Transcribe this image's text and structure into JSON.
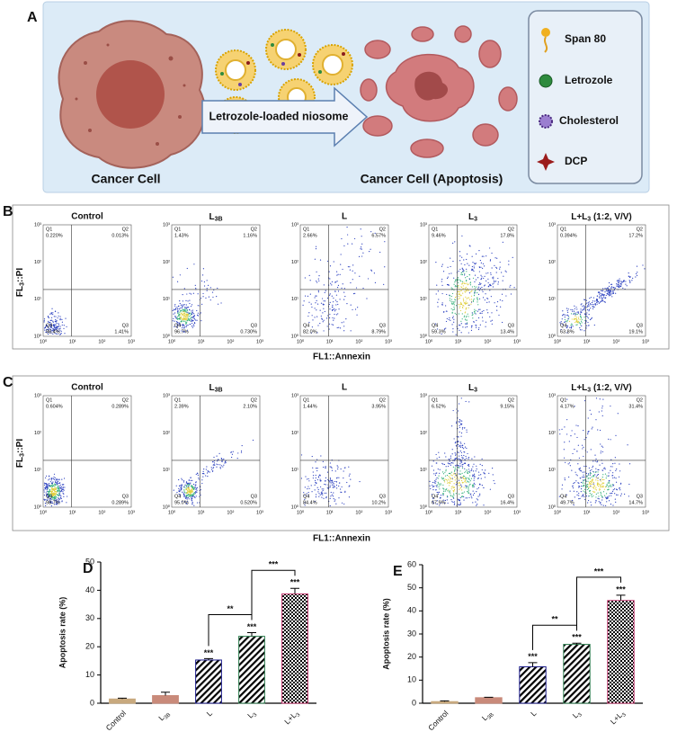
{
  "panel_a": {
    "letter": "A",
    "cancer_cell": "Cancer Cell",
    "carrier": "Letrozole-loaded niosome",
    "apoptotic_cell": "Cancer Cell (Apoptosis)",
    "legend": [
      "Span 80",
      "Letrozole",
      "Cholesterol",
      "DCP"
    ]
  },
  "panel_b": {
    "letter": "B",
    "y_label": "FL3::PI",
    "x_label": "FL1::Annexin",
    "axis_ticks": [
      "10⁰",
      "10¹",
      "10²",
      "10³"
    ],
    "plots": [
      {
        "title": "Control",
        "quadrants": [
          [
            "Q1",
            "0.220%"
          ],
          [
            "Q2",
            "0.013%"
          ],
          [
            "Q3",
            "1.41%"
          ],
          [
            "Q4",
            "98.4%"
          ]
        ]
      },
      {
        "title": "L3B",
        "quadrants": [
          [
            "Q1",
            "1.43%"
          ],
          [
            "Q2",
            "1.16%"
          ],
          [
            "Q3",
            "0.730%"
          ],
          [
            "Q4",
            "96.7%"
          ]
        ]
      },
      {
        "title": "L",
        "quadrants": [
          [
            "Q1",
            "2.66%"
          ],
          [
            "Q2",
            "6.57%"
          ],
          [
            "Q3",
            "8.79%"
          ],
          [
            "Q4",
            "82.0%"
          ]
        ]
      },
      {
        "title": "L3",
        "quadrants": [
          [
            "Q1",
            "9.46%"
          ],
          [
            "Q2",
            "17.8%"
          ],
          [
            "Q3",
            "13.4%"
          ],
          [
            "Q4",
            "59.3%"
          ]
        ]
      },
      {
        "title": "L+L3 (1:2, V/V)",
        "quadrants": [
          [
            "Q1",
            "0.394%"
          ],
          [
            "Q2",
            "17.2%"
          ],
          [
            "Q3",
            "19.1%"
          ],
          [
            "Q4",
            "63.8%"
          ]
        ]
      }
    ]
  },
  "panel_c": {
    "letter": "C",
    "y_label": "FL3::PI",
    "x_label": "FL1::Annexin",
    "axis_ticks": [
      "10⁰",
      "10¹",
      "10²",
      "10³"
    ],
    "plots": [
      {
        "title": "Control",
        "quadrants": [
          [
            "Q1",
            "0.604%"
          ],
          [
            "Q2",
            "0.289%"
          ],
          [
            "Q3",
            "0.289%"
          ],
          [
            "Q4",
            "98.7%"
          ]
        ]
      },
      {
        "title": "L3B",
        "quadrants": [
          [
            "Q1",
            "2.39%"
          ],
          [
            "Q2",
            "2.10%"
          ],
          [
            "Q3",
            "0.520%"
          ],
          [
            "Q4",
            "95.0%"
          ]
        ]
      },
      {
        "title": "L",
        "quadrants": [
          [
            "Q1",
            "1.44%"
          ],
          [
            "Q2",
            "3.95%"
          ],
          [
            "Q3",
            "10.2%"
          ],
          [
            "Q4",
            "84.4%"
          ]
        ]
      },
      {
        "title": "L3",
        "quadrants": [
          [
            "Q1",
            "6.52%"
          ],
          [
            "Q2",
            "9.15%"
          ],
          [
            "Q3",
            "16.4%"
          ],
          [
            "Q4",
            "67.9%"
          ]
        ]
      },
      {
        "title": "L+L3 (1:2, V/V)",
        "quadrants": [
          [
            "Q1",
            "4.17%"
          ],
          [
            "Q2",
            "31.4%"
          ],
          [
            "Q3",
            "14.7%"
          ],
          [
            "Q4",
            "49.7%"
          ]
        ]
      }
    ]
  },
  "chart_data": [
    {
      "type": "bar",
      "letter": "D",
      "y_label": "Apoptosis rate (%)",
      "categories": [
        "Control",
        "L3B",
        "L",
        "L3",
        "L+L3"
      ],
      "values": [
        1.5,
        2.7,
        15.3,
        23.7,
        38.7
      ],
      "errors": [
        0.3,
        1.2,
        0.5,
        1.3,
        2
      ],
      "colors": [
        "#c8a97e",
        "#c98a7a",
        "#1c1c8c",
        "#2e7d4f",
        "#c0306a"
      ],
      "hatches": [
        "solid",
        "solid",
        "diagonal",
        "diagonal",
        "grid"
      ],
      "stars": [
        null,
        null,
        "***",
        "***",
        "***"
      ],
      "brackets": [
        {
          "between": [
            "L",
            "L3"
          ],
          "label": "**"
        },
        {
          "between": [
            "L3",
            "L+L3"
          ],
          "label": "***"
        }
      ],
      "ylim": [
        0,
        50
      ],
      "yticks": [
        0,
        10,
        20,
        30,
        40,
        50
      ]
    },
    {
      "type": "bar",
      "letter": "E",
      "y_label": "Apoptosis rate (%)",
      "categories": [
        "Control",
        "L3B",
        "L",
        "L3",
        "L+L3"
      ],
      "values": [
        0.7,
        2.4,
        15.8,
        25.5,
        44.5
      ],
      "errors": [
        0.3,
        0.2,
        1.8,
        0.5,
        2.3
      ],
      "colors": [
        "#c8a97e",
        "#c98a7a",
        "#1c1c8c",
        "#2e7d4f",
        "#c0306a"
      ],
      "hatches": [
        "solid",
        "solid",
        "diagonal",
        "diagonal",
        "grid"
      ],
      "stars": [
        null,
        null,
        "***",
        "***",
        "***"
      ],
      "brackets": [
        {
          "between": [
            "L",
            "L3"
          ],
          "label": "**"
        },
        {
          "between": [
            "L3",
            "L+L3"
          ],
          "label": "***"
        }
      ],
      "ylim": [
        0,
        60
      ],
      "yticks": [
        0,
        10,
        20,
        30,
        40,
        50,
        60
      ]
    }
  ]
}
